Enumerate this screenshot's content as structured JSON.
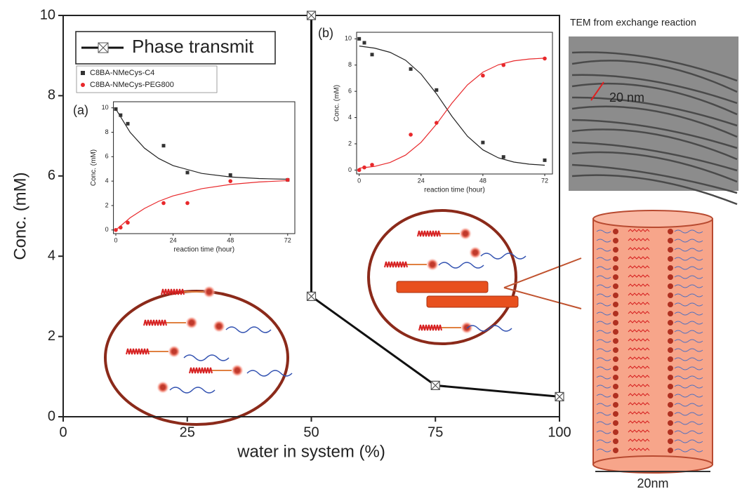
{
  "chart_data": [
    {
      "type": "line",
      "xlabel": "water in system (%)",
      "ylabel": "Conc. (mM)",
      "xlim": [
        0,
        100
      ],
      "xticks": [
        0,
        25,
        50,
        75,
        100
      ],
      "ylim": [
        0,
        10
      ],
      "yticks": [
        0,
        2,
        4,
        6,
        8,
        10
      ],
      "series": [
        {
          "name": "Phase transmit",
          "color": "#111111",
          "x": [
            50,
            50,
            75,
            100
          ],
          "values": [
            10,
            3,
            0.78,
            0.5
          ]
        }
      ]
    },
    {
      "type": "scatter",
      "label": "(a)",
      "xlabel": "reaction time (hour)",
      "ylabel": "Conc. (mM)",
      "xlim": [
        -1,
        75
      ],
      "xticks": [
        0,
        24,
        48,
        72
      ],
      "ylim": [
        -0.3,
        10.5
      ],
      "yticks": [
        0,
        2,
        4,
        6,
        8,
        10
      ],
      "series": [
        {
          "name": "C8BA-NMeCys-C4",
          "color": "#333333",
          "marker": "square",
          "x": [
            0,
            2,
            5,
            20,
            30,
            48,
            72
          ],
          "values": [
            9.9,
            9.4,
            8.7,
            6.9,
            4.7,
            4.5,
            4.1
          ]
        },
        {
          "name": "C8BA-NMeCys-PEG800",
          "color": "#e8282b",
          "marker": "circle",
          "x": [
            0,
            2,
            5,
            20,
            30,
            48,
            72
          ],
          "values": [
            0,
            0.2,
            0.6,
            2.2,
            2.2,
            4.0,
            4.1
          ]
        }
      ],
      "fits": [
        {
          "color": "#222222",
          "x": [
            0,
            6,
            12,
            18,
            24,
            36,
            48,
            60,
            72
          ],
          "values": [
            9.9,
            7.99,
            6.7,
            5.85,
            5.27,
            4.63,
            4.34,
            4.21,
            4.15
          ]
        },
        {
          "color": "#e8282b",
          "x": [
            0,
            6,
            12,
            18,
            24,
            36,
            48,
            60,
            72
          ],
          "values": [
            0,
            1.0,
            1.76,
            2.35,
            2.79,
            3.38,
            3.73,
            3.93,
            4.04
          ]
        }
      ]
    },
    {
      "type": "scatter",
      "label": "(b)",
      "xlabel": "reaction time (hour)",
      "ylabel": "Conc. (mM)",
      "xlim": [
        -1,
        75
      ],
      "xticks": [
        0,
        24,
        48,
        72
      ],
      "ylim": [
        -0.3,
        10.5
      ],
      "yticks": [
        0,
        2,
        4,
        6,
        8,
        10
      ],
      "series": [
        {
          "color": "#333333",
          "marker": "square",
          "x": [
            0,
            2,
            5,
            20,
            30,
            48,
            56,
            72
          ],
          "values": [
            10,
            9.7,
            8.8,
            7.7,
            6.1,
            2.1,
            1.0,
            0.75
          ]
        },
        {
          "color": "#e8282b",
          "marker": "circle",
          "x": [
            0,
            2,
            5,
            20,
            30,
            48,
            56,
            72
          ],
          "values": [
            0,
            0.2,
            0.4,
            2.7,
            3.6,
            7.2,
            8.0,
            8.5
          ]
        }
      ],
      "fits": [
        {
          "color": "#222222",
          "x": [
            0,
            6,
            12,
            18,
            24,
            30,
            36,
            42,
            48,
            54,
            60,
            66,
            72
          ],
          "values": [
            9.45,
            9.29,
            8.97,
            8.37,
            7.32,
            5.81,
            4.09,
            2.58,
            1.54,
            0.93,
            0.61,
            0.45,
            0.37
          ]
        },
        {
          "color": "#e8282b",
          "x": [
            0,
            6,
            12,
            18,
            24,
            30,
            36,
            42,
            48,
            54,
            60,
            66,
            72
          ],
          "values": [
            0.14,
            0.28,
            0.58,
            1.14,
            2.11,
            3.5,
            5.1,
            6.49,
            7.46,
            8.02,
            8.32,
            8.46,
            8.53
          ]
        }
      ]
    }
  ],
  "figure": {
    "tem_title": "TEM from exchange reaction",
    "tem_scale": "20 nm",
    "width_label": "20nm"
  }
}
